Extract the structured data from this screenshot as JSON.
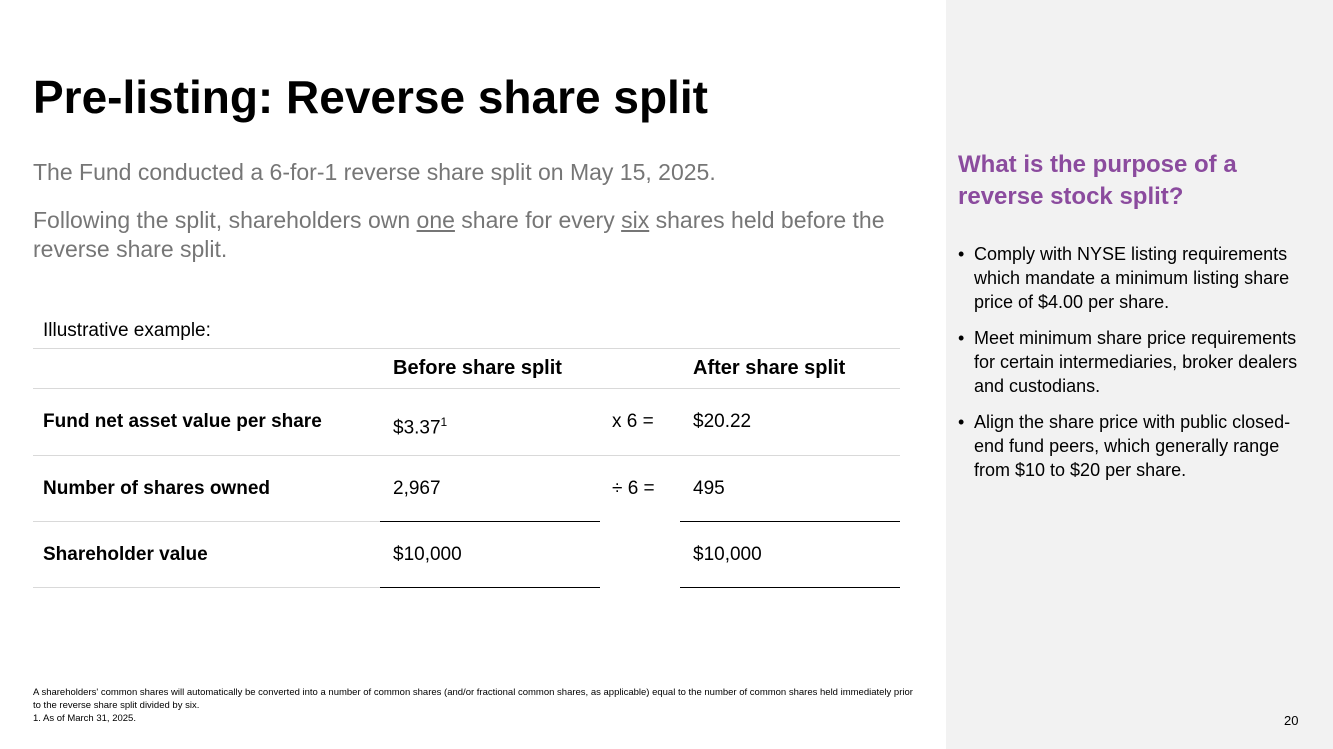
{
  "title": "Pre-listing: Reverse share split",
  "intro": "The Fund conducted a 6-for-1 reverse share split on May 15, 2025.",
  "statement": [
    "Following the split, shareholders own ",
    "one",
    " share for every ",
    "six",
    " shares held before the reverse share split."
  ],
  "table": {
    "caption": "Illustrative example:",
    "header": [
      "Before share split",
      "After share split"
    ],
    "rows": [
      {
        "label": "Fund net asset value per share",
        "before": "$3.37",
        "note": "1",
        "operator": "x 6 =",
        "after": "$20.22"
      },
      {
        "label": "Number of shares owned",
        "before": "2,967",
        "operator": "÷ 6 =",
        "after": "495"
      },
      {
        "label": "Shareholder value",
        "before": "$10,000",
        "after": "$10,000"
      }
    ]
  },
  "footnotes": [
    "A shareholders' common shares will automatically be converted into a number of common shares (and/or fractional common shares, as applicable) equal to the number of common shares held immediately prior to the reverse share split divided by six.",
    "1. As of March 31, 2025."
  ],
  "sidebar": {
    "heading": "What is the purpose of a reverse stock split?",
    "bullets": [
      "Comply with NYSE listing requirements which mandate a minimum listing share price of $4.00 per share.",
      "Meet minimum share price requirements for certain intermediaries, broker dealers and custodians.",
      "Align the share price with public closed-end fund peers, which generally range from $10 to $20 per share."
    ]
  },
  "page_number": "20"
}
